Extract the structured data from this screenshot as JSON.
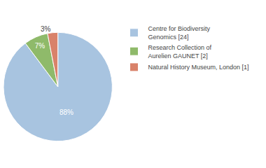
{
  "chart_data": {
    "type": "pie",
    "categories": [
      "Centre for Biodiversity\nGenomics [24]",
      "Research Collection of\nAurelien GAUNET [2]",
      "Natural History Museum, London [1]"
    ],
    "values": [
      88,
      7,
      3
    ],
    "value_labels": [
      "88%",
      "7%",
      "3%"
    ],
    "colors": [
      "#a8c4e0",
      "#8fba6a",
      "#d9826a"
    ],
    "data_labels": true,
    "legend": "right"
  }
}
